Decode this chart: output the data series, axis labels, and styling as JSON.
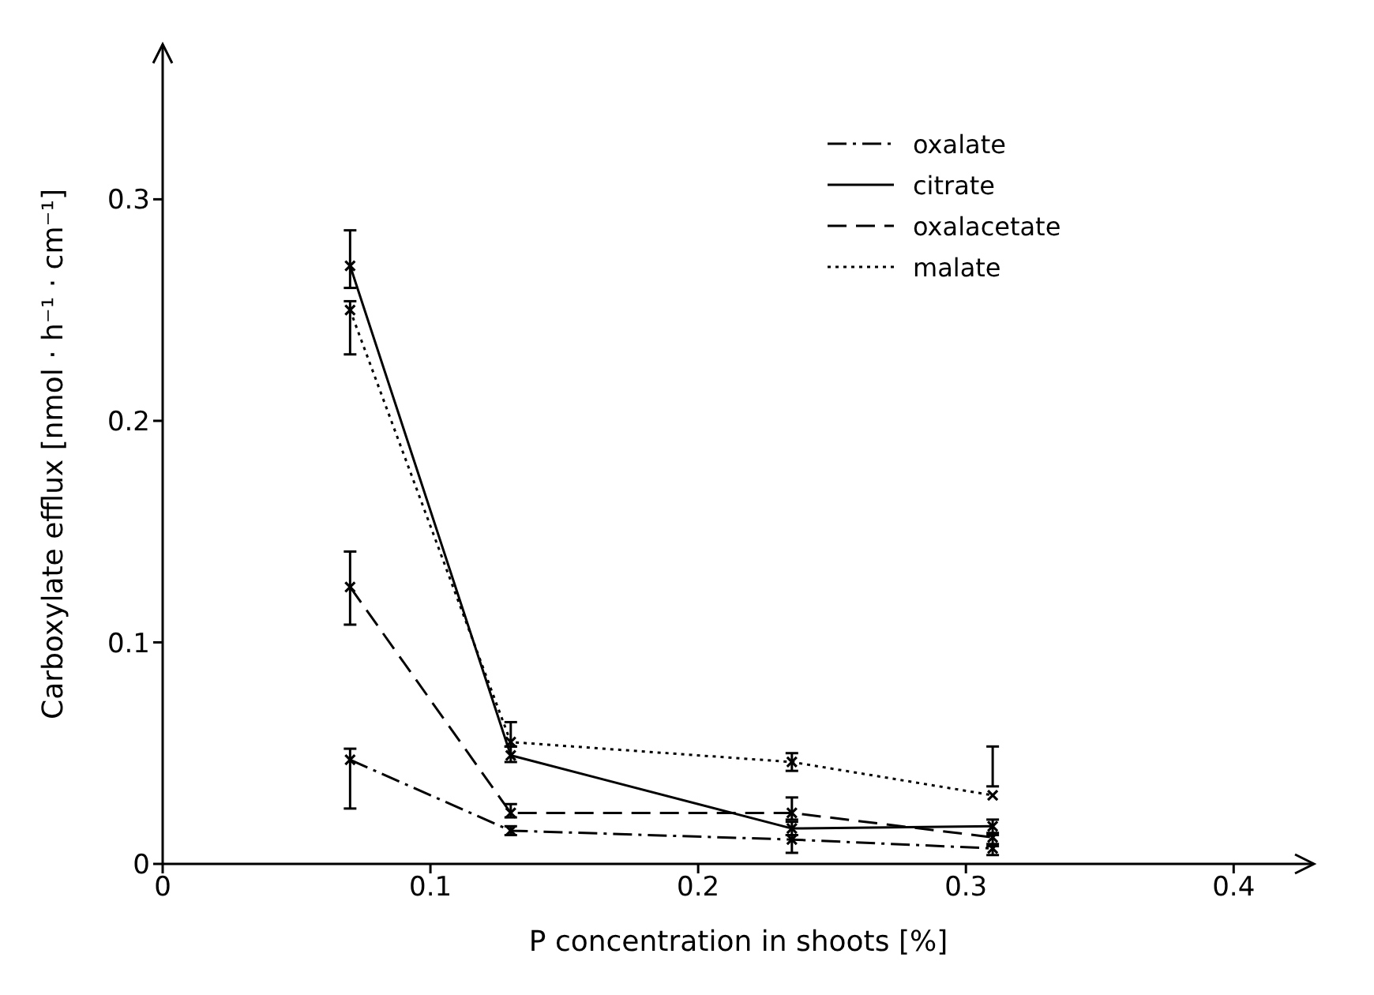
{
  "chart_data": {
    "type": "line",
    "xlabel": "P concentration in shoots [%]",
    "ylabel": "Carboxylate efflux [nmol · h⁻¹ · cm⁻¹]",
    "x": [
      0.07,
      0.13,
      0.235,
      0.31
    ],
    "series": [
      {
        "name": "oxalate",
        "color": "#000000",
        "line_style": "dashdot",
        "values": [
          0.047,
          0.015,
          0.011,
          0.007
        ],
        "errors": [
          [
            0.025,
            0.052
          ],
          [
            0.013,
            0.017
          ],
          [
            0.005,
            0.013
          ],
          [
            0.004,
            0.009
          ]
        ]
      },
      {
        "name": "citrate",
        "color": "#000000",
        "line_style": "solid",
        "values": [
          0.27,
          0.049,
          0.016,
          0.017
        ],
        "errors": [
          [
            0.26,
            0.286
          ],
          [
            0.046,
            0.053
          ],
          [
            0.013,
            0.019
          ],
          [
            0.013,
            0.02
          ]
        ]
      },
      {
        "name": "oxalacetate",
        "color": "#000000",
        "line_style": "dashed",
        "values": [
          0.125,
          0.023,
          0.023,
          0.012
        ],
        "errors": [
          [
            0.108,
            0.141
          ],
          [
            0.021,
            0.027
          ],
          [
            0.02,
            0.03
          ],
          [
            0.008,
            0.014
          ]
        ]
      },
      {
        "name": "malate",
        "color": "#000000",
        "line_style": "dotted",
        "values": [
          0.25,
          0.055,
          0.046,
          0.031
        ],
        "errors": [
          [
            0.23,
            0.254
          ],
          [
            0.053,
            0.064
          ],
          [
            0.042,
            0.05
          ],
          [
            0.035,
            0.053
          ]
        ]
      }
    ],
    "xlim": [
      0,
      0.43
    ],
    "xticks": [
      0,
      0.1,
      0.2,
      0.3,
      0.4
    ],
    "ylim": [
      0,
      0.37
    ],
    "yticks": [
      0,
      0.1,
      0.2,
      0.3
    ],
    "grid": false,
    "legend": "top right",
    "marker": "cross"
  }
}
